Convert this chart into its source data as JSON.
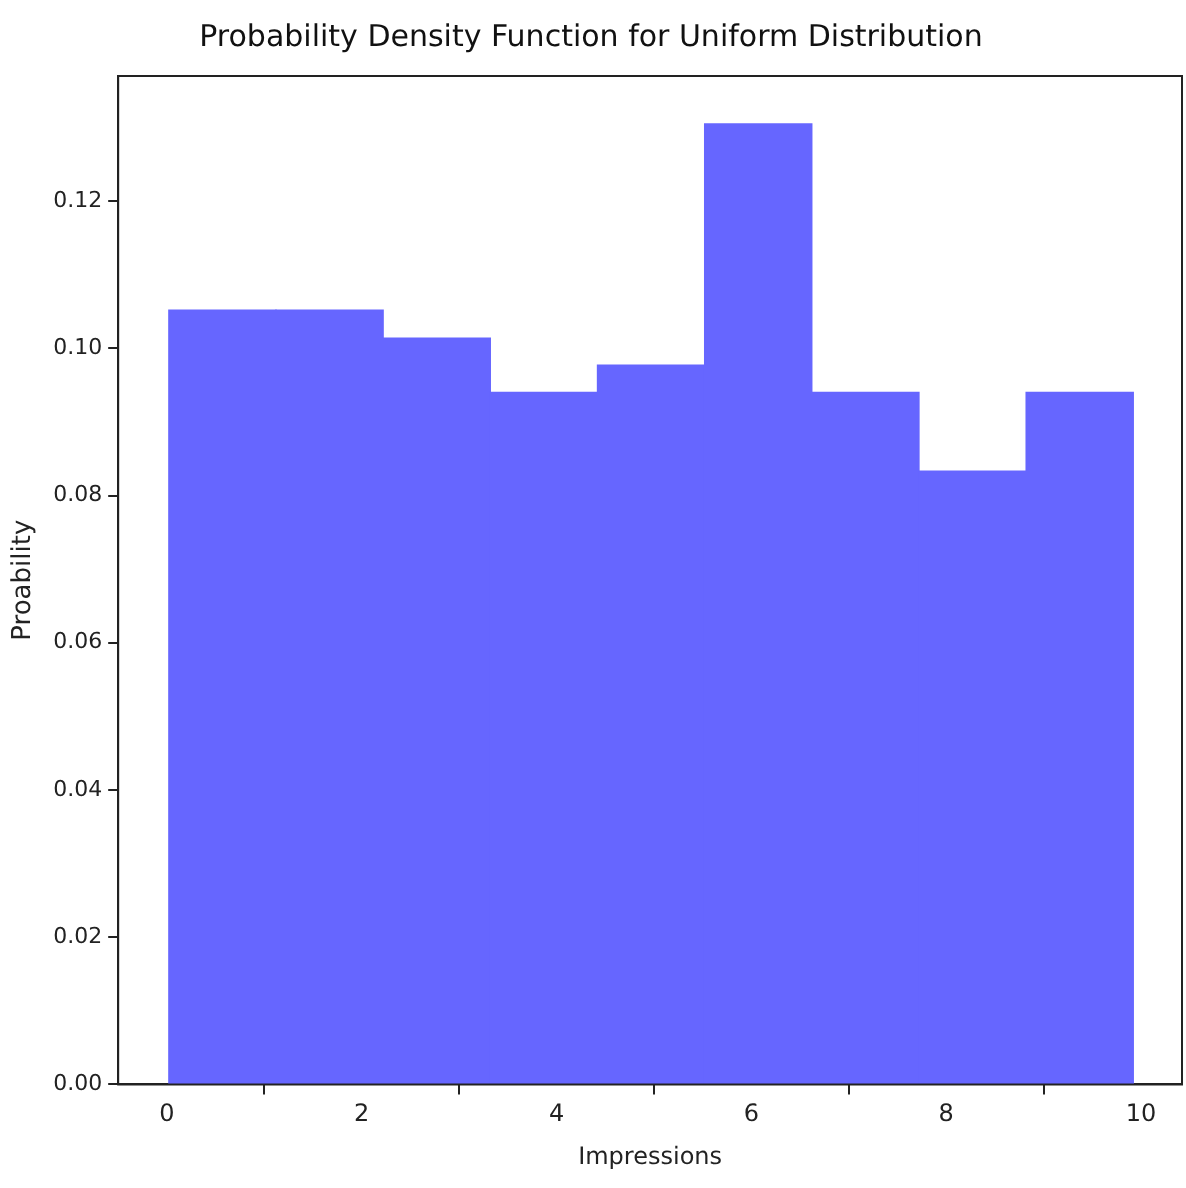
{
  "chart_data": {
    "type": "histogram",
    "title": "Probability Density Function for Uniform Distribution",
    "xlabel": "Impressions",
    "ylabel": "Proability",
    "bins": [
      0.02,
      1.12,
      2.22,
      3.32,
      4.42,
      5.52,
      6.62,
      7.72,
      8.82,
      9.92
    ],
    "values": [
      0.1052,
      0.1052,
      0.1014,
      0.094,
      0.0977,
      0.1305,
      0.094,
      0.0833,
      0.094
    ],
    "color": "#6666ff",
    "xlim": [
      -0.5,
      10.42
    ],
    "xticks": [
      0,
      2,
      4,
      6,
      8,
      10
    ],
    "ylim": [
      0,
      0.137
    ],
    "yticks": [
      {
        "value": 0,
        "label": "0.00"
      },
      0.02,
      0.04,
      0.06,
      0.08,
      {
        "value": 0.1,
        "label": "0.10"
      },
      0.12
    ],
    "grid": false,
    "legend": false
  }
}
